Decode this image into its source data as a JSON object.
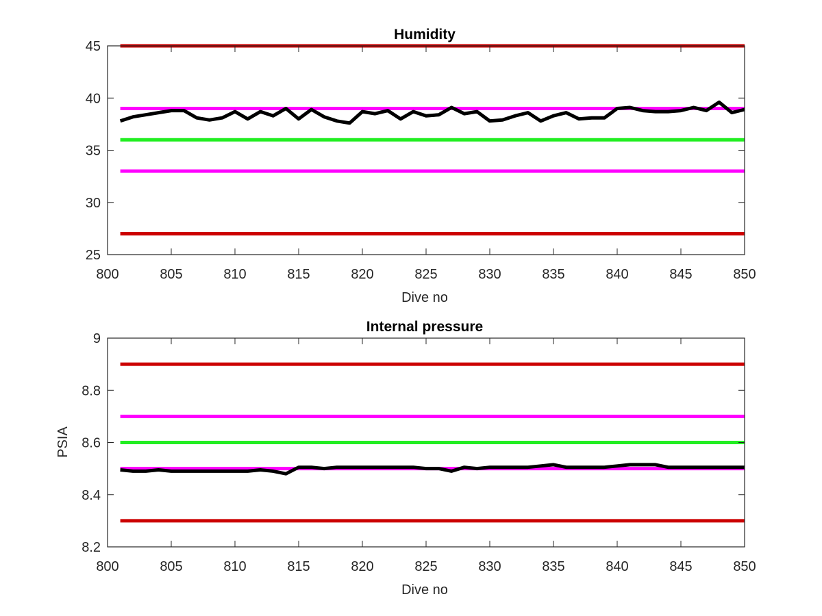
{
  "chart_data": [
    {
      "type": "line",
      "title": "Humidity",
      "xlabel": "Dive no",
      "ylabel": "",
      "xlim": [
        800,
        850
      ],
      "ylim": [
        25,
        45
      ],
      "xticks": [
        800,
        805,
        810,
        815,
        820,
        825,
        830,
        835,
        840,
        845,
        850
      ],
      "yticks": [
        25,
        30,
        35,
        40,
        45
      ],
      "grid": false,
      "series": [
        {
          "color": "#000000",
          "x": [
            801,
            802,
            803,
            804,
            805,
            806,
            807,
            808,
            809,
            810,
            811,
            812,
            813,
            814,
            815,
            816,
            817,
            818,
            819,
            820,
            821,
            822,
            823,
            824,
            825,
            826,
            827,
            828,
            829,
            830,
            831,
            832,
            833,
            834,
            835,
            836,
            837,
            838,
            839,
            840,
            841,
            842,
            843,
            844,
            845,
            846,
            847,
            848,
            849,
            850
          ],
          "values": [
            37.8,
            38.2,
            38.4,
            38.6,
            38.8,
            38.8,
            38.1,
            37.9,
            38.1,
            38.7,
            38.0,
            38.7,
            38.3,
            39.0,
            38.0,
            38.9,
            38.2,
            37.8,
            37.6,
            38.7,
            38.5,
            38.8,
            38.0,
            38.7,
            38.3,
            38.4,
            39.1,
            38.5,
            38.7,
            37.8,
            37.9,
            38.3,
            38.6,
            37.8,
            38.3,
            38.6,
            38.0,
            38.1,
            38.1,
            39.0,
            39.1,
            38.8,
            38.7,
            38.7,
            38.8,
            39.1,
            38.8,
            39.6,
            38.6,
            38.9
          ]
        },
        {
          "color": "#cc0000",
          "x": [
            801,
            850
          ],
          "values": [
            45,
            45
          ]
        },
        {
          "color": "#ff00ff",
          "x": [
            801,
            850
          ],
          "values": [
            39,
            39
          ]
        },
        {
          "color": "#22ee22",
          "x": [
            801,
            850
          ],
          "values": [
            36,
            36
          ]
        },
        {
          "color": "#ff00ff",
          "x": [
            801,
            850
          ],
          "values": [
            33,
            33
          ]
        },
        {
          "color": "#cc0000",
          "x": [
            801,
            850
          ],
          "values": [
            27,
            27
          ]
        }
      ]
    },
    {
      "type": "line",
      "title": "Internal pressure",
      "xlabel": "Dive no",
      "ylabel": "PSIA",
      "xlim": [
        800,
        850
      ],
      "ylim": [
        8.2,
        9
      ],
      "xticks": [
        800,
        805,
        810,
        815,
        820,
        825,
        830,
        835,
        840,
        845,
        850
      ],
      "yticks": [
        8.2,
        8.4,
        8.6,
        8.8,
        9
      ],
      "grid": false,
      "series": [
        {
          "color": "#000000",
          "x": [
            801,
            802,
            803,
            804,
            805,
            806,
            807,
            808,
            809,
            810,
            811,
            812,
            813,
            814,
            815,
            816,
            817,
            818,
            819,
            820,
            821,
            822,
            823,
            824,
            825,
            826,
            827,
            828,
            829,
            830,
            831,
            832,
            833,
            834,
            835,
            836,
            837,
            838,
            839,
            840,
            841,
            842,
            843,
            844,
            845,
            846,
            847,
            848,
            849,
            850
          ],
          "values": [
            8.495,
            8.49,
            8.49,
            8.495,
            8.49,
            8.49,
            8.49,
            8.49,
            8.49,
            8.49,
            8.49,
            8.495,
            8.49,
            8.48,
            8.505,
            8.505,
            8.5,
            8.505,
            8.505,
            8.505,
            8.505,
            8.505,
            8.505,
            8.505,
            8.5,
            8.5,
            8.49,
            8.505,
            8.5,
            8.505,
            8.505,
            8.505,
            8.505,
            8.51,
            8.515,
            8.505,
            8.505,
            8.505,
            8.505,
            8.51,
            8.515,
            8.515,
            8.515,
            8.505,
            8.505,
            8.505,
            8.505,
            8.505,
            8.505,
            8.505
          ]
        },
        {
          "color": "#cc0000",
          "x": [
            801,
            850
          ],
          "values": [
            8.9,
            8.9
          ]
        },
        {
          "color": "#ff00ff",
          "x": [
            801,
            850
          ],
          "values": [
            8.7,
            8.7
          ]
        },
        {
          "color": "#22ee22",
          "x": [
            801,
            850
          ],
          "values": [
            8.6,
            8.6
          ]
        },
        {
          "color": "#ff00ff",
          "x": [
            801,
            850
          ],
          "values": [
            8.5,
            8.5
          ]
        },
        {
          "color": "#cc0000",
          "x": [
            801,
            850
          ],
          "values": [
            8.3,
            8.3
          ]
        }
      ]
    }
  ]
}
